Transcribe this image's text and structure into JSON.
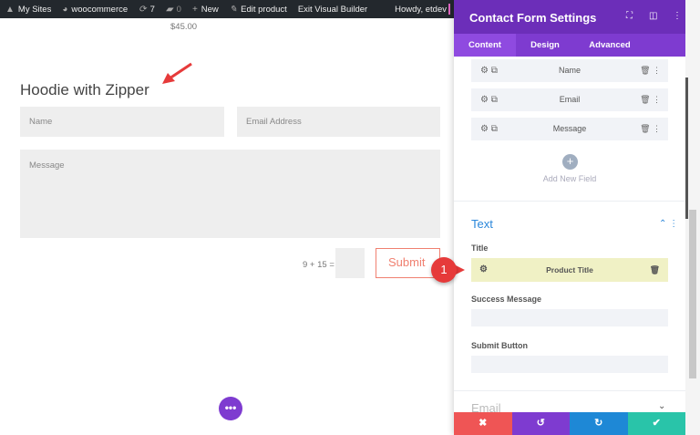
{
  "adminbar": {
    "my_sites": "My Sites",
    "site": "woocommerce",
    "updates": "7",
    "comments": "0",
    "new": "New",
    "edit": "Edit product",
    "exit": "Exit Visual Builder",
    "howdy": "Howdy, etdev"
  },
  "page": {
    "price": "$45.00",
    "title": "Hoodie with Zipper",
    "name_placeholder": "Name",
    "email_placeholder": "Email Address",
    "message_placeholder": "Message",
    "captcha": "9 + 15 =",
    "submit": "Submit",
    "fab": "•••"
  },
  "panel": {
    "title": "Contact Form Settings",
    "tabs": [
      "Content",
      "Design",
      "Advanced"
    ],
    "fields": [
      "Name",
      "Email",
      "Message"
    ],
    "add_field": "Add New Field",
    "section": "Text",
    "title_label": "Title",
    "title_value": "Product Title",
    "success_label": "Success Message",
    "submit_label": "Submit Button",
    "email_section": "Email"
  },
  "annotation": {
    "callout": "1"
  },
  "colors": {
    "purple": "#6c2eb9",
    "blue": "#2b87da",
    "red": "#ef5555",
    "teal": "#29c4a9"
  }
}
